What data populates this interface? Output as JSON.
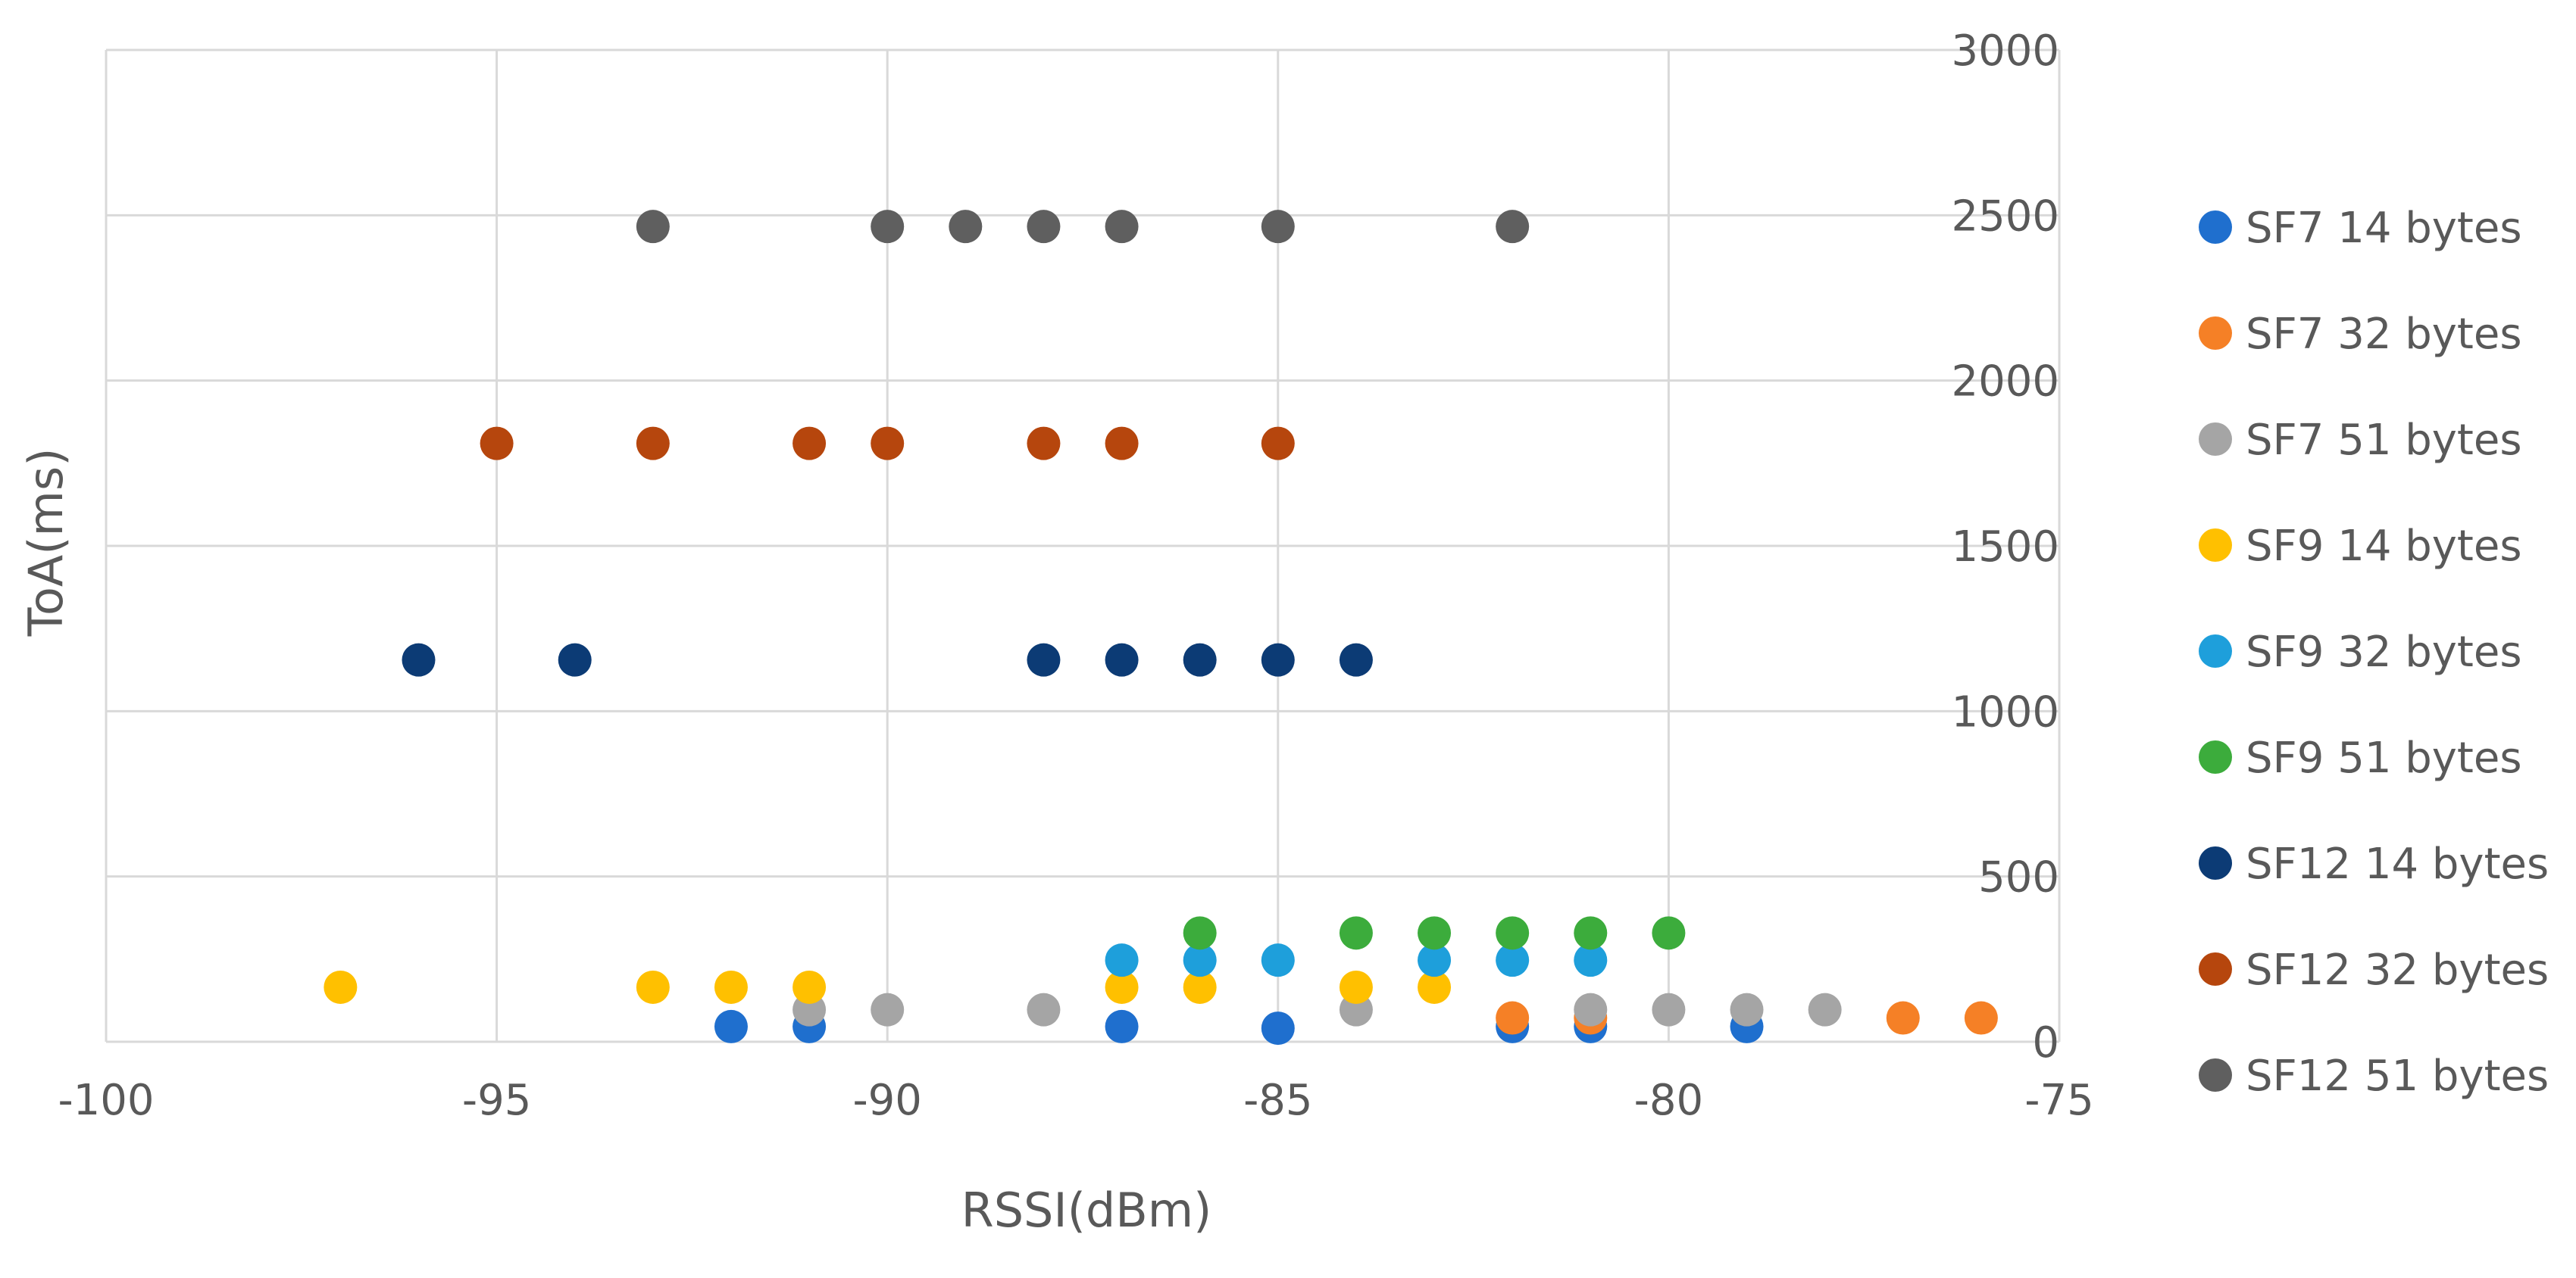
{
  "chart_data": {
    "type": "scatter",
    "title": "",
    "xlabel": "RSSI(dBm)",
    "ylabel": "ToA(ms)",
    "xlim": [
      -100,
      -75
    ],
    "ylim": [
      0,
      3000
    ],
    "xticks": [
      -100,
      -95,
      -90,
      -85,
      -80,
      -75
    ],
    "yticks": [
      0,
      500,
      1000,
      1500,
      2000,
      2500,
      3000
    ],
    "y_axis_position": "right",
    "grid": true,
    "legend_position": "right",
    "series": [
      {
        "name": "SF7 14 bytes",
        "color": "#1f6fce",
        "points": [
          [
            -92,
            46
          ],
          [
            -91,
            46
          ],
          [
            -87,
            46
          ],
          [
            -85,
            41
          ],
          [
            -82,
            46
          ],
          [
            -81,
            46
          ],
          [
            -79,
            46
          ]
        ]
      },
      {
        "name": "SF7 32 bytes",
        "color": "#f58026",
        "points": [
          [
            -82,
            72
          ],
          [
            -81,
            72
          ],
          [
            -77,
            72
          ],
          [
            -76,
            72
          ]
        ]
      },
      {
        "name": "SF7 51 bytes",
        "color": "#a5a5a5",
        "points": [
          [
            -91,
            97
          ],
          [
            -90,
            97
          ],
          [
            -88,
            97
          ],
          [
            -84,
            97
          ],
          [
            -81,
            97
          ],
          [
            -80,
            97
          ],
          [
            -79,
            97
          ],
          [
            -78,
            97
          ]
        ]
      },
      {
        "name": "SF9 14 bytes",
        "color": "#ffc000",
        "points": [
          [
            -97,
            165
          ],
          [
            -93,
            165
          ],
          [
            -92,
            165
          ],
          [
            -91,
            165
          ],
          [
            -87,
            165
          ],
          [
            -86,
            165
          ],
          [
            -84,
            165
          ],
          [
            -83,
            165
          ]
        ]
      },
      {
        "name": "SF9 32 bytes",
        "color": "#1e9fdb",
        "points": [
          [
            -87,
            247
          ],
          [
            -86,
            247
          ],
          [
            -85,
            247
          ],
          [
            -83,
            247
          ],
          [
            -82,
            247
          ],
          [
            -81,
            247
          ]
        ]
      },
      {
        "name": "SF9 51 bytes",
        "color": "#3cac3c",
        "points": [
          [
            -86,
            329
          ],
          [
            -84,
            329
          ],
          [
            -83,
            329
          ],
          [
            -82,
            329
          ],
          [
            -81,
            329
          ],
          [
            -80,
            329
          ]
        ]
      },
      {
        "name": "SF12 14 bytes",
        "color": "#0c3b75",
        "points": [
          [
            -96,
            1155
          ],
          [
            -94,
            1155
          ],
          [
            -88,
            1155
          ],
          [
            -87,
            1155
          ],
          [
            -86,
            1155
          ],
          [
            -85,
            1155
          ],
          [
            -84,
            1155
          ]
        ]
      },
      {
        "name": "SF12 32 bytes",
        "color": "#b6460d",
        "points": [
          [
            -95,
            1810
          ],
          [
            -93,
            1810
          ],
          [
            -91,
            1810
          ],
          [
            -90,
            1810
          ],
          [
            -88,
            1810
          ],
          [
            -87,
            1810
          ],
          [
            -85,
            1810
          ]
        ]
      },
      {
        "name": "SF12 51 bytes",
        "color": "#5f5f5f",
        "points": [
          [
            -93,
            2466
          ],
          [
            -90,
            2466
          ],
          [
            -89,
            2466
          ],
          [
            -88,
            2466
          ],
          [
            -87,
            2466
          ],
          [
            -85,
            2466
          ],
          [
            -82,
            2466
          ]
        ]
      }
    ]
  }
}
